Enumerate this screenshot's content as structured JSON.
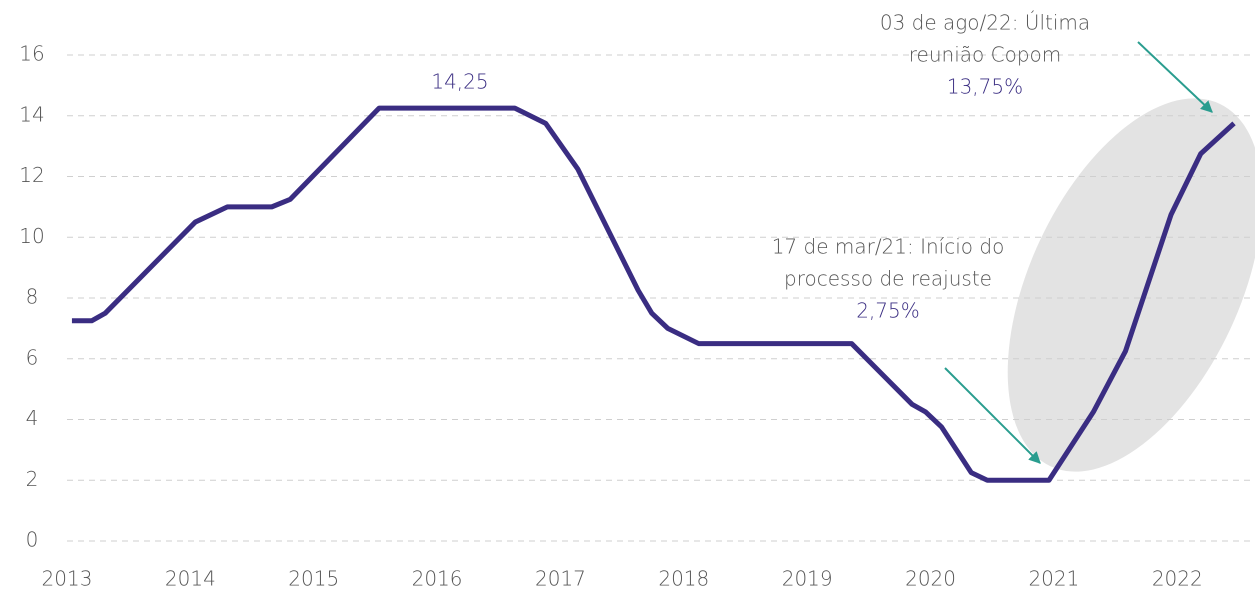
{
  "chart_data": {
    "type": "line",
    "x": [
      2013.04,
      2013.2,
      2013.31,
      2014.04,
      2014.3,
      2014.66,
      2014.81,
      2015.53,
      2016.63,
      2016.88,
      2017.14,
      2017.63,
      2017.74,
      2017.87,
      2018.12,
      2019.36,
      2019.85,
      2019.96,
      2020.09,
      2020.33,
      2020.46,
      2020.96,
      2021.32,
      2021.58,
      2021.95,
      2022.19,
      2022.46
    ],
    "series": [
      {
        "color": "#3a2d82",
        "values": [
          7.25,
          7.25,
          7.5,
          10.5,
          11,
          11,
          11.25,
          14.25,
          14.25,
          13.75,
          12.25,
          8.25,
          7.5,
          7,
          6.5,
          6.5,
          4.5,
          4.25,
          3.75,
          2.25,
          2,
          2,
          4.25,
          6.25,
          10.75,
          12.75,
          13.75
        ]
      }
    ],
    "xlim": [
      2013,
      2022.63
    ],
    "xticks": [
      2013,
      2014,
      2015,
      2016,
      2017,
      2018,
      2019,
      2020,
      2021,
      2022
    ],
    "ylim": [
      0,
      16
    ],
    "yticks": [
      0,
      2,
      4,
      6,
      8,
      10,
      12,
      14,
      16
    ],
    "grid": true,
    "annotations": [
      {
        "lines": [
          "14,25"
        ]
      },
      {
        "lines": [
          "17 de mar/21: Início do",
          "processo de reajuste",
          "2,75%"
        ]
      },
      {
        "lines": [
          "03 de ago/22: Última",
          "reunião Copom",
          "13,75%"
        ]
      }
    ]
  }
}
